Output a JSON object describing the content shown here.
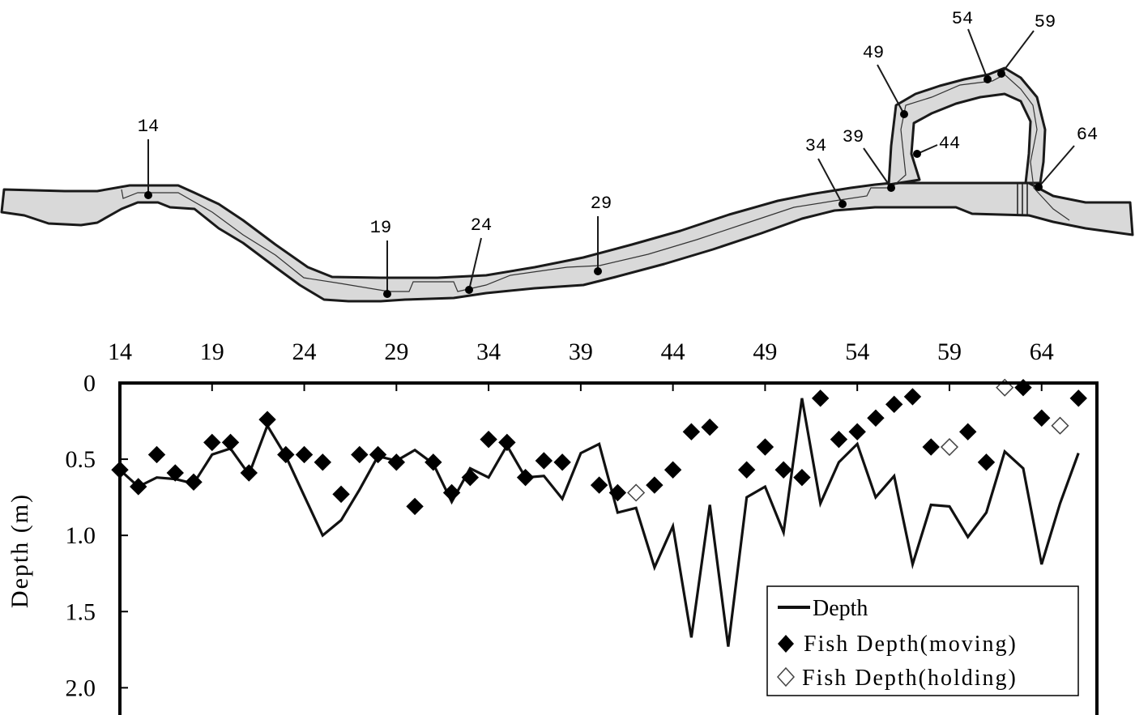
{
  "chart_data": {
    "type": "line",
    "title": "",
    "xlabel": "",
    "ylabel": "Depth (m)",
    "x_ticks": [
      "14",
      "19",
      "24",
      "29",
      "34",
      "39",
      "44",
      "49",
      "54",
      "59",
      "64"
    ],
    "y_ticks": [
      "0",
      "0.5",
      "1.0",
      "1.5",
      "2.0"
    ],
    "xlim": [
      14,
      67
    ],
    "ylim": [
      0,
      2.2
    ],
    "y_inverted": true,
    "grid": false,
    "legend_position": "bottom-right",
    "series": [
      {
        "name": "Depth",
        "marker": "line",
        "x": [
          14,
          15,
          16,
          17,
          18,
          19,
          20,
          21,
          22,
          23,
          24,
          25,
          26,
          27,
          28,
          29,
          30,
          31,
          32,
          33,
          34,
          35,
          36,
          37,
          38,
          39,
          40,
          41,
          42,
          43,
          44,
          45,
          46,
          47,
          48,
          49,
          50,
          51,
          52,
          53,
          54,
          55,
          56,
          57,
          58,
          59,
          60,
          61,
          62,
          63,
          64,
          65,
          66
        ],
        "y": [
          0.57,
          0.68,
          0.62,
          0.63,
          0.66,
          0.47,
          0.43,
          0.6,
          0.28,
          0.48,
          0.74,
          1.0,
          0.9,
          0.7,
          0.48,
          0.51,
          0.44,
          0.53,
          0.78,
          0.56,
          0.62,
          0.41,
          0.62,
          0.61,
          0.76,
          0.46,
          0.4,
          0.85,
          0.82,
          1.21,
          0.94,
          1.67,
          0.8,
          1.73,
          0.75,
          0.68,
          0.98,
          0.1,
          0.79,
          0.52,
          0.4,
          0.75,
          0.61,
          1.19,
          0.8,
          0.81,
          1.01,
          0.85,
          0.45,
          0.56,
          1.19,
          0.79,
          0.46
        ]
      },
      {
        "name": "Fish Depth(moving)",
        "marker": "filled-diamond",
        "x": [
          14,
          15,
          16,
          17,
          18,
          19,
          20,
          21,
          22,
          23,
          24,
          25,
          26,
          27,
          28,
          29,
          30,
          31,
          32,
          33,
          34,
          35,
          36,
          37,
          38,
          39,
          40,
          41,
          42,
          43,
          44,
          45,
          46,
          47,
          48,
          49,
          50,
          51,
          52,
          53,
          54,
          55,
          56,
          57,
          58,
          59,
          60,
          61,
          62,
          63,
          64,
          65,
          66
        ],
        "y": [
          0.57,
          0.68,
          0.47,
          0.59,
          0.65,
          0.39,
          0.39,
          0.59,
          0.24,
          0.47,
          0.47,
          0.52,
          0.73,
          0.47,
          0.47,
          0.52,
          0.81,
          0.52,
          0.72,
          0.62,
          0.37,
          0.39,
          0.62,
          0.51,
          0.52,
          null,
          0.67,
          0.72,
          null,
          0.67,
          0.57,
          0.32,
          0.29,
          null,
          0.57,
          0.42,
          0.57,
          0.62,
          0.1,
          0.37,
          0.32,
          0.23,
          0.14,
          0.09,
          0.42,
          null,
          0.32,
          0.52,
          null,
          0.03,
          0.23,
          null,
          0.1
        ]
      },
      {
        "name": "Fish Depth(holding)",
        "marker": "open-diamond",
        "x": [
          42,
          59,
          62,
          65
        ],
        "y": [
          0.72,
          0.42,
          0.03,
          0.28
        ]
      }
    ]
  },
  "map": {
    "point_labels": [
      "14",
      "19",
      "24",
      "29",
      "34",
      "39",
      "44",
      "49",
      "54",
      "59",
      "64"
    ]
  },
  "colors": {
    "river_fill": "#d9d9d9",
    "stroke": "#1a1a1a",
    "background": "#ffffff"
  }
}
